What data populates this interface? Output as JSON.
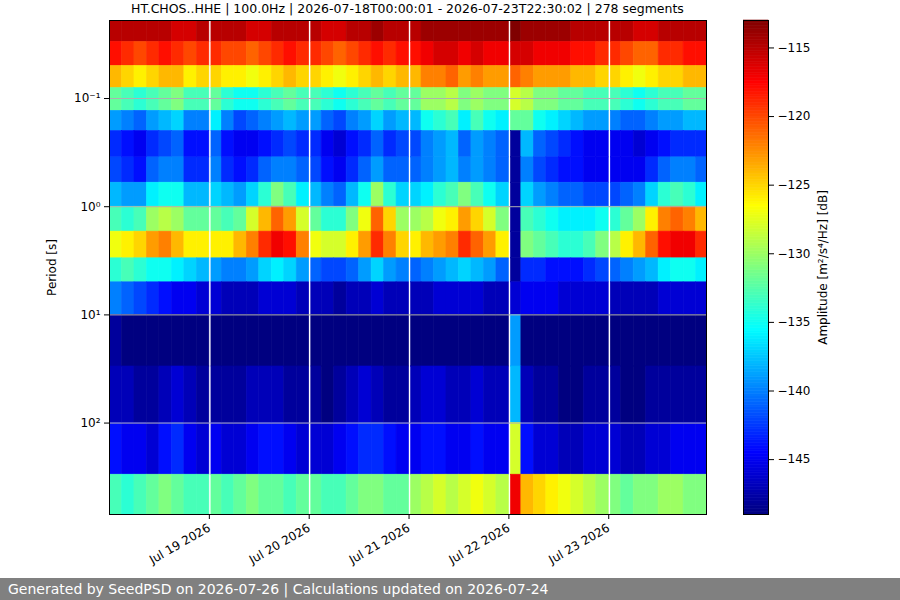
{
  "chart_data": {
    "type": "heatmap",
    "title": "HT.CHOS..HHE | 100.0Hz | 2026-07-18T00:00:01 - 2026-07-23T22:30:02 | 278 segments",
    "ylabel": "Period [s]",
    "caption": "Generated by SeedPSD on 2026-07-26 | Calculations updated on 2026-07-24",
    "log": "y",
    "grid": "y",
    "xlim": [
      "2026-07-18T00:00",
      "2026-07-23T23:30"
    ],
    "xticks": [
      {
        "value": "2026-07-19",
        "label": "Jul 19 2026"
      },
      {
        "value": "2026-07-20",
        "label": "Jul 20 2026"
      },
      {
        "value": "2026-07-21",
        "label": "Jul 21 2026"
      },
      {
        "value": "2026-07-22",
        "label": "Jul 22 2026"
      },
      {
        "value": "2026-07-23",
        "label": "Jul 23 2026"
      }
    ],
    "ylim": [
      0.019,
      700
    ],
    "yticks": [
      {
        "value": 0.1,
        "label": "10⁻¹"
      },
      {
        "value": 1,
        "label": "10⁰"
      },
      {
        "value": 10,
        "label": "10¹"
      },
      {
        "value": 100,
        "label": "10²"
      }
    ],
    "colorbar": {
      "label": "Amplitude [m²/s⁴/Hz] [dB]",
      "range": [
        -149,
        -113
      ],
      "ticks": [
        -145,
        -140,
        -135,
        -130,
        -125,
        -120,
        -115
      ]
    },
    "x": [
      "2026-07-18T00:00",
      "2026-07-18T03:00",
      "2026-07-18T06:00",
      "2026-07-18T09:00",
      "2026-07-18T12:00",
      "2026-07-18T15:00",
      "2026-07-18T18:00",
      "2026-07-18T21:00",
      "2026-07-19T00:30",
      "2026-07-19T03:00",
      "2026-07-19T06:00",
      "2026-07-19T09:00",
      "2026-07-19T12:00",
      "2026-07-19T15:00",
      "2026-07-19T18:00",
      "2026-07-19T21:00",
      "2026-07-20T00:30",
      "2026-07-20T03:00",
      "2026-07-20T06:00",
      "2026-07-20T09:00",
      "2026-07-20T12:00",
      "2026-07-20T15:00",
      "2026-07-20T18:00",
      "2026-07-20T21:00",
      "2026-07-21T00:30",
      "2026-07-21T03:00",
      "2026-07-21T06:00",
      "2026-07-21T09:00",
      "2026-07-21T12:00",
      "2026-07-21T15:00",
      "2026-07-21T18:00",
      "2026-07-21T21:00",
      "2026-07-22T00:30",
      "2026-07-22T03:00",
      "2026-07-22T06:00",
      "2026-07-22T09:00",
      "2026-07-22T12:00",
      "2026-07-22T15:00",
      "2026-07-22T18:00",
      "2026-07-22T21:00",
      "2026-07-23T00:30",
      "2026-07-23T03:00",
      "2026-07-23T06:00",
      "2026-07-23T09:00",
      "2026-07-23T12:00",
      "2026-07-23T15:00",
      "2026-07-23T18:00",
      "2026-07-23T21:00"
    ],
    "x_end": [
      "2026-07-18T03:00",
      "2026-07-18T06:00",
      "2026-07-18T09:00",
      "2026-07-18T12:00",
      "2026-07-18T15:00",
      "2026-07-18T18:00",
      "2026-07-18T21:00",
      "2026-07-19T00:00",
      "2026-07-19T03:00",
      "2026-07-19T06:00",
      "2026-07-19T09:00",
      "2026-07-19T12:00",
      "2026-07-19T15:00",
      "2026-07-19T18:00",
      "2026-07-19T21:00",
      "2026-07-20T00:00",
      "2026-07-20T03:00",
      "2026-07-20T06:00",
      "2026-07-20T09:00",
      "2026-07-20T12:00",
      "2026-07-20T15:00",
      "2026-07-20T18:00",
      "2026-07-20T21:00",
      "2026-07-21T00:00",
      "2026-07-21T03:00",
      "2026-07-21T06:00",
      "2026-07-21T09:00",
      "2026-07-21T12:00",
      "2026-07-21T15:00",
      "2026-07-21T18:00",
      "2026-07-21T21:00",
      "2026-07-22T00:00",
      "2026-07-22T03:00",
      "2026-07-22T06:00",
      "2026-07-22T09:00",
      "2026-07-22T12:00",
      "2026-07-22T15:00",
      "2026-07-22T18:00",
      "2026-07-22T21:00",
      "2026-07-23T00:00",
      "2026-07-23T03:00",
      "2026-07-23T06:00",
      "2026-07-23T09:00",
      "2026-07-23T12:00",
      "2026-07-23T15:00",
      "2026-07-23T18:00",
      "2026-07-23T21:00",
      "2026-07-24T00:00"
    ],
    "y_edges": [
      0.019,
      0.03,
      0.05,
      0.08,
      0.13,
      0.2,
      0.35,
      0.6,
      1,
      1.7,
      3,
      5,
      10,
      30,
      100,
      300,
      700
    ],
    "values": [
      [
        -115,
        -115,
        -115,
        -115,
        -115,
        -116,
        -116,
        -115,
        -115,
        -115,
        -115,
        -116,
        -116,
        -115,
        -115,
        -115,
        -115,
        -116,
        -116,
        -115,
        -115,
        -114,
        -115,
        -115,
        -115,
        -114,
        -114,
        -114,
        -114,
        -114,
        -114,
        -114,
        -113,
        -114,
        -114,
        -114,
        -114,
        -115,
        -115,
        -115,
        -115,
        -115,
        -116,
        -116,
        -115,
        -115,
        -115,
        -115
      ],
      [
        -118,
        -119,
        -120,
        -119,
        -118,
        -119,
        -120,
        -119,
        -119,
        -120,
        -120,
        -121,
        -120,
        -119,
        -118,
        -119,
        -119,
        -120,
        -121,
        -120,
        -119,
        -118,
        -119,
        -118,
        -118,
        -117,
        -116,
        -116,
        -117,
        -116,
        -117,
        -117,
        -116,
        -116,
        -117,
        -117,
        -117,
        -118,
        -118,
        -119,
        -119,
        -120,
        -121,
        -121,
        -119,
        -119,
        -118,
        -118
      ],
      [
        -124,
        -125,
        -126,
        -125,
        -124,
        -124,
        -126,
        -125,
        -125,
        -126,
        -126,
        -127,
        -126,
        -125,
        -124,
        -125,
        -125,
        -126,
        -127,
        -126,
        -125,
        -124,
        -125,
        -124,
        -124,
        -122,
        -122,
        -121,
        -123,
        -122,
        -123,
        -123,
        -121,
        -122,
        -123,
        -123,
        -123,
        -124,
        -124,
        -125,
        -125,
        -126,
        -127,
        -126,
        -125,
        -125,
        -124,
        -124
      ],
      [
        -132,
        -133,
        -134,
        -133,
        -132,
        -131,
        -133,
        -133,
        -132,
        -134,
        -135,
        -135,
        -134,
        -133,
        -132,
        -133,
        -133,
        -134,
        -135,
        -134,
        -133,
        -132,
        -133,
        -132,
        -132,
        -130,
        -130,
        -129,
        -131,
        -130,
        -131,
        -131,
        -128,
        -129,
        -131,
        -131,
        -132,
        -132,
        -133,
        -133,
        -133,
        -134,
        -135,
        -134,
        -133,
        -133,
        -132,
        -132
      ],
      [
        -139,
        -140,
        -141,
        -139,
        -138,
        -137,
        -140,
        -140,
        -136,
        -140,
        -142,
        -141,
        -140,
        -139,
        -138,
        -139,
        -139,
        -141,
        -142,
        -140,
        -139,
        -137,
        -139,
        -138,
        -138,
        -135,
        -134,
        -133,
        -136,
        -133,
        -135,
        -136,
        -132,
        -132,
        -135,
        -136,
        -137,
        -138,
        -139,
        -139,
        -140,
        -141,
        -141,
        -140,
        -139,
        -139,
        -138,
        -138
      ],
      [
        -143,
        -144,
        -145,
        -143,
        -142,
        -141,
        -144,
        -144,
        -141,
        -144,
        -145,
        -145,
        -144,
        -143,
        -142,
        -143,
        -143,
        -145,
        -146,
        -144,
        -143,
        -141,
        -143,
        -142,
        -142,
        -140,
        -139,
        -138,
        -141,
        -139,
        -140,
        -141,
        -148,
        -138,
        -141,
        -142,
        -143,
        -144,
        -145,
        -145,
        -145,
        -145,
        -146,
        -145,
        -144,
        -143,
        -143,
        -143
      ],
      [
        -142,
        -143,
        -144,
        -141,
        -140,
        -140,
        -143,
        -143,
        -140,
        -143,
        -144,
        -143,
        -141,
        -140,
        -140,
        -141,
        -142,
        -144,
        -145,
        -143,
        -141,
        -139,
        -141,
        -141,
        -141,
        -140,
        -139,
        -138,
        -140,
        -139,
        -140,
        -141,
        -148,
        -140,
        -142,
        -143,
        -144,
        -144,
        -145,
        -145,
        -145,
        -145,
        -145,
        -143,
        -141,
        -140,
        -140,
        -141
      ],
      [
        -138,
        -139,
        -139,
        -136,
        -135,
        -135,
        -138,
        -138,
        -137,
        -138,
        -139,
        -137,
        -134,
        -131,
        -133,
        -136,
        -138,
        -140,
        -141,
        -138,
        -135,
        -130,
        -134,
        -137,
        -137,
        -136,
        -134,
        -133,
        -131,
        -133,
        -135,
        -137,
        -148,
        -137,
        -139,
        -140,
        -141,
        -141,
        -142,
        -142,
        -142,
        -141,
        -140,
        -137,
        -134,
        -133,
        -134,
        -136
      ],
      [
        -133,
        -134,
        -133,
        -130,
        -129,
        -130,
        -132,
        -132,
        -132,
        -133,
        -132,
        -128,
        -124,
        -121,
        -123,
        -128,
        -132,
        -134,
        -134,
        -131,
        -127,
        -121,
        -125,
        -130,
        -130,
        -129,
        -127,
        -126,
        -123,
        -125,
        -128,
        -131,
        -148,
        -133,
        -134,
        -135,
        -136,
        -136,
        -136,
        -135,
        -134,
        -132,
        -130,
        -126,
        -122,
        -121,
        -122,
        -124
      ],
      [
        -127,
        -126,
        -125,
        -123,
        -122,
        -124,
        -126,
        -126,
        -126,
        -126,
        -124,
        -122,
        -119,
        -117,
        -118,
        -122,
        -127,
        -128,
        -128,
        -126,
        -123,
        -119,
        -122,
        -125,
        -126,
        -124,
        -123,
        -122,
        -119,
        -121,
        -123,
        -126,
        -148,
        -131,
        -132,
        -133,
        -134,
        -134,
        -133,
        -131,
        -129,
        -126,
        -124,
        -121,
        -118,
        -117,
        -117,
        -119
      ],
      [
        -134,
        -133,
        -134,
        -135,
        -135,
        -136,
        -137,
        -138,
        -139,
        -140,
        -140,
        -139,
        -137,
        -136,
        -137,
        -139,
        -141,
        -142,
        -142,
        -141,
        -139,
        -137,
        -139,
        -140,
        -141,
        -140,
        -139,
        -138,
        -137,
        -138,
        -139,
        -141,
        -148,
        -143,
        -143,
        -144,
        -144,
        -144,
        -143,
        -142,
        -141,
        -140,
        -139,
        -138,
        -136,
        -135,
        -135,
        -136
      ],
      [
        -140,
        -141,
        -142,
        -143,
        -144,
        -145,
        -145,
        -146,
        -146,
        -147,
        -147,
        -147,
        -146,
        -146,
        -146,
        -147,
        -147,
        -147,
        -148,
        -147,
        -147,
        -146,
        -147,
        -147,
        -147,
        -147,
        -146,
        -146,
        -146,
        -146,
        -147,
        -147,
        -146,
        -145,
        -145,
        -145,
        -146,
        -146,
        -146,
        -146,
        -147,
        -147,
        -147,
        -147,
        -146,
        -146,
        -146,
        -146
      ],
      [
        -148,
        -149,
        -149,
        -149,
        -149,
        -149,
        -149,
        -149,
        -149,
        -149,
        -149,
        -149,
        -149,
        -149,
        -149,
        -149,
        -149,
        -149,
        -149,
        -149,
        -149,
        -149,
        -149,
        -149,
        -149,
        -149,
        -149,
        -149,
        -149,
        -149,
        -149,
        -149,
        -139,
        -149,
        -149,
        -149,
        -149,
        -149,
        -149,
        -149,
        -149,
        -149,
        -149,
        -149,
        -149,
        -149,
        -149,
        -149
      ],
      [
        -147,
        -147,
        -148,
        -148,
        -147,
        -146,
        -147,
        -148,
        -148,
        -148,
        -148,
        -147,
        -147,
        -147,
        -148,
        -148,
        -148,
        -149,
        -148,
        -147,
        -146,
        -147,
        -148,
        -148,
        -147,
        -146,
        -146,
        -147,
        -147,
        -146,
        -147,
        -147,
        -138,
        -147,
        -148,
        -148,
        -149,
        -149,
        -148,
        -148,
        -148,
        -149,
        -149,
        -148,
        -148,
        -148,
        -148,
        -148
      ],
      [
        -144,
        -145,
        -145,
        -146,
        -144,
        -143,
        -145,
        -146,
        -145,
        -146,
        -146,
        -145,
        -144,
        -144,
        -145,
        -146,
        -146,
        -146,
        -145,
        -144,
        -143,
        -143,
        -144,
        -145,
        -145,
        -144,
        -144,
        -145,
        -145,
        -144,
        -145,
        -145,
        -128,
        -144,
        -146,
        -146,
        -147,
        -147,
        -146,
        -146,
        -146,
        -147,
        -147,
        -146,
        -146,
        -145,
        -145,
        -145
      ],
      [
        -133,
        -134,
        -133,
        -132,
        -131,
        -132,
        -133,
        -133,
        -132,
        -133,
        -132,
        -131,
        -132,
        -132,
        -133,
        -132,
        -132,
        -133,
        -133,
        -132,
        -131,
        -131,
        -132,
        -132,
        -130,
        -129,
        -128,
        -129,
        -128,
        -127,
        -128,
        -129,
        -117,
        -124,
        -125,
        -126,
        -127,
        -128,
        -129,
        -130,
        -131,
        -132,
        -131,
        -131,
        -130,
        -130,
        -131,
        -131
      ]
    ]
  }
}
